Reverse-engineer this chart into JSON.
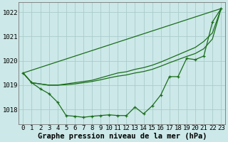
{
  "xlabel": "Graphe pression niveau de la mer (hPa)",
  "ylim": [
    1017.4,
    1022.4
  ],
  "xlim": [
    -0.5,
    23.5
  ],
  "yticks": [
    1018,
    1019,
    1020,
    1021,
    1022
  ],
  "xticks": [
    0,
    1,
    2,
    3,
    4,
    5,
    6,
    7,
    8,
    9,
    10,
    11,
    12,
    13,
    14,
    15,
    16,
    17,
    18,
    19,
    20,
    21,
    22,
    23
  ],
  "bg_color": "#cce8e8",
  "grid_color": "#aacccc",
  "line_color": "#1a6e1a",
  "series": [
    {
      "x": [
        0,
        1,
        2,
        3,
        4,
        5,
        6,
        7,
        8,
        9,
        10,
        11,
        12,
        13,
        14,
        15,
        16,
        17,
        18,
        19,
        20,
        21,
        22,
        23
      ],
      "y": [
        1019.5,
        1019.1,
        1018.85,
        1018.65,
        1018.3,
        1017.75,
        1017.72,
        1017.68,
        1017.72,
        1017.75,
        1017.78,
        1017.75,
        1017.75,
        1018.1,
        1017.82,
        1018.15,
        1018.6,
        1019.35,
        1019.35,
        1020.1,
        1020.05,
        1020.2,
        1021.6,
        1022.15
      ],
      "marker": true
    },
    {
      "x": [
        0,
        23
      ],
      "y": [
        1019.5,
        1022.15
      ],
      "marker": false
    },
    {
      "x": [
        0,
        1,
        2,
        3,
        4,
        5,
        6,
        7,
        8,
        9,
        10,
        11,
        12,
        13,
        14,
        15,
        16,
        17,
        18,
        19,
        20,
        21,
        22,
        23
      ],
      "y": [
        1019.5,
        1019.1,
        1019.05,
        1019.0,
        1019.0,
        1019.05,
        1019.1,
        1019.15,
        1019.2,
        1019.3,
        1019.4,
        1019.5,
        1019.55,
        1019.65,
        1019.72,
        1019.82,
        1019.95,
        1020.1,
        1020.25,
        1020.4,
        1020.55,
        1020.8,
        1021.15,
        1022.15
      ],
      "marker": false
    },
    {
      "x": [
        0,
        1,
        2,
        3,
        4,
        5,
        6,
        7,
        8,
        9,
        10,
        11,
        12,
        13,
        14,
        15,
        16,
        17,
        18,
        19,
        20,
        21,
        22,
        23
      ],
      "y": [
        1019.5,
        1019.1,
        1019.05,
        1019.0,
        1019.0,
        1019.02,
        1019.05,
        1019.1,
        1019.15,
        1019.22,
        1019.3,
        1019.37,
        1019.42,
        1019.5,
        1019.56,
        1019.65,
        1019.78,
        1019.92,
        1020.05,
        1020.18,
        1020.3,
        1020.5,
        1020.9,
        1022.15
      ],
      "marker": false
    }
  ],
  "font_family": "monospace",
  "tick_fontsize": 6.5,
  "label_fontsize": 7.5
}
